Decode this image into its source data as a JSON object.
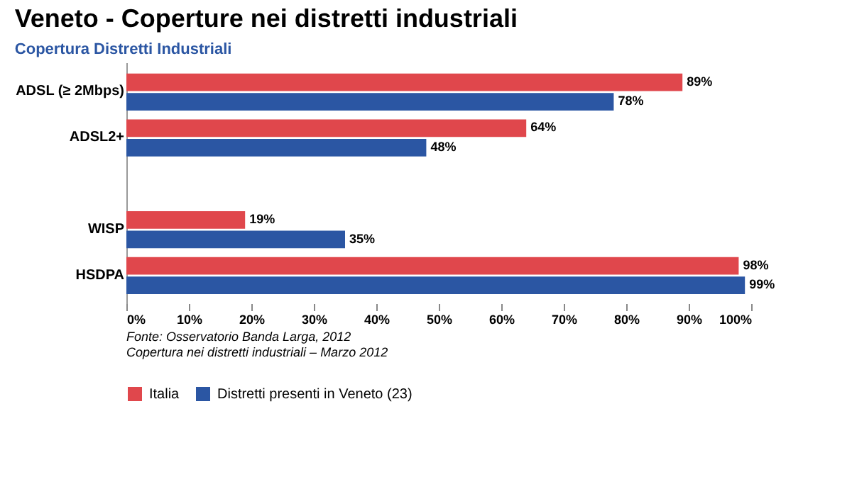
{
  "chart_data": {
    "type": "bar",
    "orientation": "horizontal",
    "title": "Veneto - Coperture nei distretti industriali",
    "subtitle": "Copertura Distretti Industriali",
    "categories": [
      "ADSL (≥ 2Mbps)",
      "ADSL2+",
      null,
      "WISP",
      "HSDPA"
    ],
    "series": [
      {
        "name": "Italia",
        "color": "#e0474c",
        "values": [
          89,
          64,
          null,
          19,
          98
        ],
        "value_labels": [
          "89%",
          "64%",
          null,
          "19%",
          "98%"
        ]
      },
      {
        "name": "Distretti presenti in Veneto (23)",
        "color": "#2b56a3",
        "values": [
          78,
          48,
          null,
          35,
          99
        ],
        "value_labels": [
          "78%",
          "48%",
          null,
          "35%",
          "99%"
        ]
      }
    ],
    "xlim": [
      0,
      100
    ],
    "xticks": [
      {
        "value": 0,
        "label": "0%"
      },
      {
        "value": 10,
        "label": "10%"
      },
      {
        "value": 20,
        "label": "20%"
      },
      {
        "value": 30,
        "label": "30%"
      },
      {
        "value": 40,
        "label": "40%"
      },
      {
        "value": 50,
        "label": "50%"
      },
      {
        "value": 60,
        "label": "60%"
      },
      {
        "value": 70,
        "label": "70%"
      },
      {
        "value": 80,
        "label": "80%"
      },
      {
        "value": 90,
        "label": "90%"
      },
      {
        "value": 100,
        "label": "100%"
      }
    ],
    "grid": false,
    "legend": "bottom",
    "annotations": [
      "Fonte: Osservatorio Banda Larga, 2012",
      "Copertura nei distretti industriali – Marzo 2012"
    ]
  }
}
